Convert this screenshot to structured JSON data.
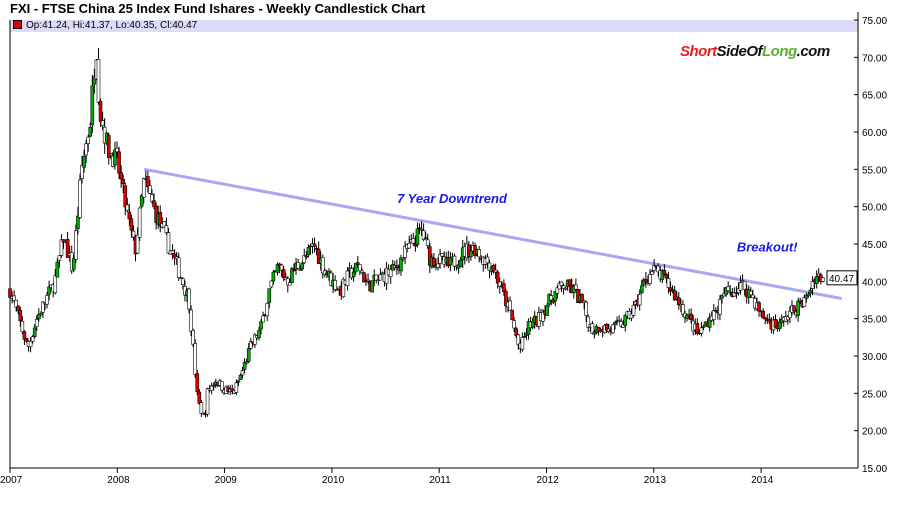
{
  "title": "FXI - FTSE China 25 Index Fund Ishares - Weekly Candlestick Chart",
  "ohlc_readout": "Op:41.24, Hi:41.37, Lo:40.35, Cl:40.47",
  "logo": {
    "part1": "Short",
    "part2": "SideOf",
    "part3": "Long",
    "part4": ".com"
  },
  "colors": {
    "up": "#00b000",
    "down": "#e00000",
    "neutral": "#000000",
    "trendline": "#a8a8f0",
    "annotation": "#1a1ae6",
    "readout_bg": "#dcdcf8"
  },
  "chart_data": {
    "type": "candlestick",
    "title": "FXI - FTSE China 25 Index Fund Ishares - Weekly Candlestick Chart",
    "ylim": [
      15,
      75
    ],
    "yticks": [
      "75.00",
      "70.00",
      "65.00",
      "60.00",
      "55.00",
      "50.00",
      "45.00",
      "40.00",
      "35.00",
      "30.00",
      "25.00",
      "20.00",
      "15.00"
    ],
    "xticks": [
      "2007",
      "2008",
      "2009",
      "2010",
      "2011",
      "2012",
      "2013",
      "2014"
    ],
    "last_price_label": "40.47",
    "closes": [
      [
        "2007-01",
        38.8
      ],
      [
        "2007-02",
        35
      ],
      [
        "2007-03",
        31
      ],
      [
        "2007-04",
        35
      ],
      [
        "2007-05",
        37.5
      ],
      [
        "2007-06",
        40
      ],
      [
        "2007-07",
        46
      ],
      [
        "2007-08",
        41.5
      ],
      [
        "2007-08-20",
        49.6
      ],
      [
        "2007-09",
        55
      ],
      [
        "2007-10",
        61.6
      ],
      [
        "2007-10-20",
        72.3
      ],
      [
        "2007-11",
        63
      ],
      [
        "2007-12",
        57.6
      ],
      [
        "2008-01",
        56
      ],
      [
        "2008-02",
        49.6
      ],
      [
        "2008-03",
        44
      ],
      [
        "2008-04",
        53.6
      ],
      [
        "2008-05",
        50
      ],
      [
        "2008-06",
        47
      ],
      [
        "2008-07",
        44
      ],
      [
        "2008-08",
        41
      ],
      [
        "2008-09",
        37.5
      ],
      [
        "2008-10",
        24
      ],
      [
        "2008-10-25",
        21.4
      ],
      [
        "2008-11",
        25
      ],
      [
        "2008-12",
        26.8
      ],
      [
        "2009-01",
        25.5
      ],
      [
        "2009-02",
        25
      ],
      [
        "2009-03",
        28
      ],
      [
        "2009-04",
        31.5
      ],
      [
        "2009-05",
        33.5
      ],
      [
        "2009-06",
        38.8
      ],
      [
        "2009-07",
        42
      ],
      [
        "2009-08",
        40
      ],
      [
        "2009-09",
        42
      ],
      [
        "2009-10",
        43
      ],
      [
        "2009-11",
        44.9
      ],
      [
        "2009-12",
        42
      ],
      [
        "2010-01",
        40
      ],
      [
        "2010-02",
        38.8
      ],
      [
        "2010-03",
        41
      ],
      [
        "2010-04",
        42
      ],
      [
        "2010-05",
        39.5
      ],
      [
        "2010-06",
        40
      ],
      [
        "2010-07",
        41
      ],
      [
        "2010-08",
        41.5
      ],
      [
        "2010-09",
        43.5
      ],
      [
        "2010-10",
        45
      ],
      [
        "2010-11",
        46.9
      ],
      [
        "2010-12",
        43
      ],
      [
        "2011-01",
        42.8
      ],
      [
        "2011-02",
        42
      ],
      [
        "2011-03",
        43
      ],
      [
        "2011-04",
        44.2
      ],
      [
        "2011-05",
        44.5
      ],
      [
        "2011-06",
        43
      ],
      [
        "2011-07",
        42
      ],
      [
        "2011-08",
        38.8
      ],
      [
        "2011-09",
        35.5
      ],
      [
        "2011-10",
        30.8
      ],
      [
        "2011-11",
        34
      ],
      [
        "2011-12",
        34.8
      ],
      [
        "2012-01",
        36.8
      ],
      [
        "2012-02",
        38.5
      ],
      [
        "2012-03",
        39.5
      ],
      [
        "2012-04",
        38.8
      ],
      [
        "2012-05",
        37
      ],
      [
        "2012-06",
        33.5
      ],
      [
        "2012-07",
        34
      ],
      [
        "2012-08",
        33.5
      ],
      [
        "2012-09",
        34
      ],
      [
        "2012-10",
        35
      ],
      [
        "2012-11",
        36.8
      ],
      [
        "2012-12",
        40.2
      ],
      [
        "2013-01",
        41.5
      ],
      [
        "2013-02",
        40.5
      ],
      [
        "2013-03",
        38.8
      ],
      [
        "2013-04",
        36.8
      ],
      [
        "2013-05",
        34.8
      ],
      [
        "2013-06",
        32.8
      ],
      [
        "2013-07",
        34.8
      ],
      [
        "2013-08",
        36
      ],
      [
        "2013-09",
        38.5
      ],
      [
        "2013-10",
        38.8
      ],
      [
        "2013-11",
        39.5
      ],
      [
        "2013-12",
        38
      ],
      [
        "2014-01",
        35.5
      ],
      [
        "2014-02",
        34.5
      ],
      [
        "2014-03",
        34
      ],
      [
        "2014-04",
        35.5
      ],
      [
        "2014-05",
        36.5
      ],
      [
        "2014-06",
        37.5
      ],
      [
        "2014-07",
        40.8
      ],
      [
        "2014-08",
        40.47
      ]
    ],
    "trendline": {
      "start": [
        "2008-04",
        55
      ],
      "end": [
        "2014-10",
        37.7
      ]
    },
    "annotations": [
      {
        "text": "7 Year Downtrend",
        "date": "2011-03",
        "price": 50.5
      },
      {
        "text": "Breakout!",
        "date": "2014-05",
        "price": 44
      }
    ]
  }
}
